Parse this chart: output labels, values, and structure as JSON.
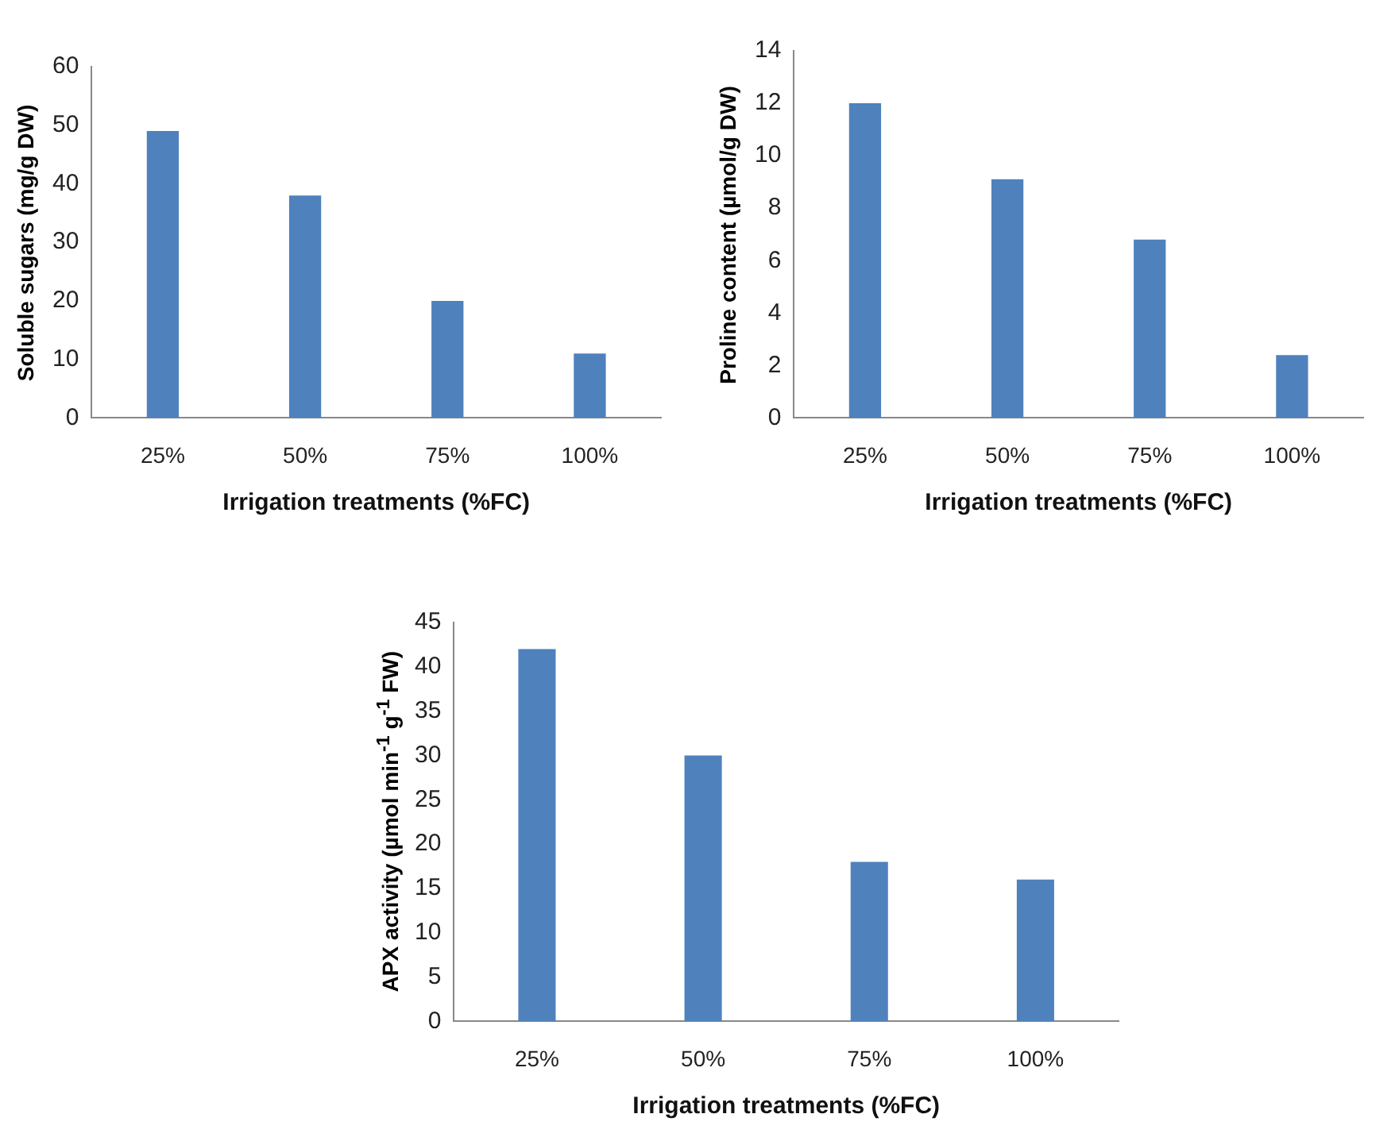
{
  "chart_data": [
    {
      "type": "bar",
      "xlabel": "Irrigation treatments (%FC)",
      "ylabel": "Soluble sugars (mg/g DW)",
      "categories": [
        "25%",
        "50%",
        "75%",
        "100%"
      ],
      "values": [
        49,
        38,
        20,
        11
      ],
      "color": "#4f81bd",
      "ylim": [
        0,
        60
      ],
      "yticks": [
        0,
        10,
        20,
        30,
        40,
        50,
        60
      ]
    },
    {
      "type": "bar",
      "xlabel": "Irrigation treatments (%FC)",
      "ylabel": "Proline content (µmol/g DW)",
      "categories": [
        "25%",
        "50%",
        "75%",
        "100%"
      ],
      "values": [
        12,
        9.1,
        6.8,
        2.4
      ],
      "color": "#4f81bd",
      "ylim": [
        0,
        14
      ],
      "yticks": [
        0,
        2,
        4,
        6,
        8,
        10,
        12,
        14
      ]
    },
    {
      "type": "bar",
      "xlabel": "Irrigation treatments (%FC)",
      "ylabel": "APX activity (µmol min$^{-1}$ g$^{-1}$ FW)",
      "categories": [
        "25%",
        "50%",
        "75%",
        "100%"
      ],
      "values": [
        42,
        30,
        18,
        16
      ],
      "color": "#4f81bd",
      "ylim": [
        0,
        45
      ],
      "yticks": [
        0,
        5,
        10,
        15,
        20,
        25,
        30,
        35,
        40,
        45
      ]
    }
  ]
}
